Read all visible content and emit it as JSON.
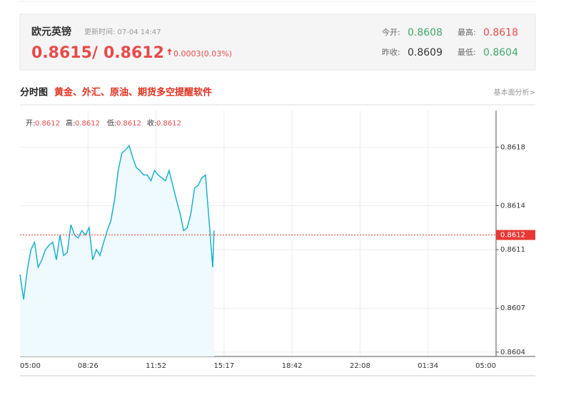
{
  "header": {
    "name": "欧元英镑",
    "update_time": "更新时间: 07-04 14:47",
    "bid": "0.8615",
    "separator": "/",
    "ask": "0.8612",
    "change": "0.0003(0.03%)",
    "stats": [
      {
        "label": "今开:",
        "value": "0.8608"
      },
      {
        "label": "最高:",
        "value": "0.8618"
      },
      {
        "label": "昨收:",
        "value": "0.8609"
      },
      {
        "label": "最低:",
        "value": "0.8604"
      }
    ]
  },
  "section": {
    "title": "分时图",
    "promo": "黄金、外汇、原油、期货多空提醒软件",
    "link": "基本面分析>"
  },
  "chart_data": {
    "type": "line",
    "ohlc": [
      {
        "label": "开:",
        "value": "0.8612"
      },
      {
        "label": "高:",
        "value": "0.8612"
      },
      {
        "label": "低:",
        "value": "0.8612"
      },
      {
        "label": "收:",
        "value": "0.8612"
      }
    ],
    "x": [
      "05:00",
      "05:11",
      "05:22",
      "05:33",
      "05:44",
      "05:55",
      "06:06",
      "06:17",
      "06:28",
      "06:39",
      "06:50",
      "07:01",
      "07:12",
      "07:23",
      "07:34",
      "07:45",
      "07:56",
      "08:07",
      "08:18",
      "08:29",
      "08:40",
      "08:51",
      "09:02",
      "09:13",
      "09:24",
      "09:35",
      "09:46",
      "09:57",
      "10:08",
      "10:19",
      "10:30",
      "10:41",
      "10:52",
      "11:03",
      "11:14",
      "11:25",
      "11:36",
      "11:47",
      "11:58",
      "12:09",
      "12:20",
      "12:31",
      "12:42",
      "12:53",
      "13:04",
      "13:15",
      "13:26",
      "13:37",
      "13:48",
      "13:59",
      "14:10",
      "14:21",
      "14:32",
      "14:43",
      "14:47"
    ],
    "values": [
      0.86093,
      0.86076,
      0.86096,
      0.8611,
      0.86115,
      0.86098,
      0.86103,
      0.8611,
      0.86113,
      0.86115,
      0.86103,
      0.8612,
      0.86106,
      0.86108,
      0.86127,
      0.8612,
      0.86118,
      0.86123,
      0.8612,
      0.86125,
      0.86103,
      0.8611,
      0.86106,
      0.86115,
      0.86123,
      0.8613,
      0.86144,
      0.86164,
      0.86176,
      0.86178,
      0.86181,
      0.86173,
      0.86166,
      0.86164,
      0.86161,
      0.86161,
      0.86157,
      0.86164,
      0.86161,
      0.86159,
      0.86157,
      0.86164,
      0.86154,
      0.86144,
      0.86135,
      0.86123,
      0.86125,
      0.86135,
      0.86152,
      0.86154,
      0.86159,
      0.86161,
      0.8613,
      0.86098,
      0.86123
    ],
    "color": "#1bb0d0",
    "fill": "#eefafd",
    "xticks": [
      "05:00",
      "08:26",
      "11:52",
      "15:17",
      "18:42",
      "22:08",
      "01:34",
      "05:00"
    ],
    "ylim": [
      0.86037,
      0.86205
    ],
    "yticks": [
      0.8604,
      0.8607,
      0.8611,
      0.8614,
      0.8618
    ],
    "current_price": 0.8612,
    "current_color": "#e53935",
    "grid": true
  }
}
